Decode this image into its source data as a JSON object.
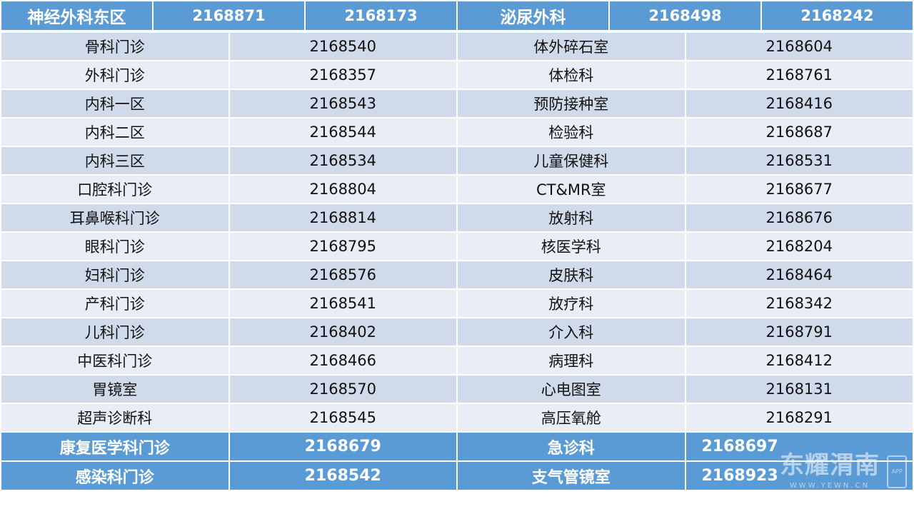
{
  "header": [
    "神经外科东区",
    "2168871",
    "2168173",
    "泌尿外科",
    "2168498",
    "2168242"
  ],
  "rows": [
    [
      "骨科门诊",
      "2168540",
      "体外碎石室",
      "2168604"
    ],
    [
      "外科门诊",
      "2168357",
      "体检科",
      "2168761"
    ],
    [
      "内科一区",
      "2168543",
      "预防接种室",
      "2168416"
    ],
    [
      "内科二区",
      "2168544",
      "检验科",
      "2168687"
    ],
    [
      "内科三区",
      "2168534",
      "儿童保健科",
      "2168531"
    ],
    [
      "口腔科门诊",
      "2168804",
      "CT&MR室",
      "2168677"
    ],
    [
      "耳鼻喉科门诊",
      "2168814",
      "放射科",
      "2168676"
    ],
    [
      "眼科门诊",
      "2168795",
      "核医学科",
      "2168204"
    ],
    [
      "妇科门诊",
      "2168576",
      "皮肤科",
      "2168464"
    ],
    [
      "产科门诊",
      "2168541",
      "放疗科",
      "2168342"
    ],
    [
      "儿科门诊",
      "2168402",
      "介入科",
      "2168791"
    ],
    [
      "中医科门诊",
      "2168466",
      "病理科",
      "2168412"
    ],
    [
      "胃镜室",
      "2168570",
      "心电图室",
      "2168131"
    ],
    [
      "超声诊断科",
      "2168545",
      "高压氧舱",
      "2168291"
    ]
  ],
  "highlight_rows": [
    [
      "康复医学科门诊",
      "2168679",
      "急诊科",
      "2168697"
    ],
    [
      "感染科门诊",
      "2168542",
      "支气管镜室",
      "2168923"
    ]
  ],
  "watermark": {
    "brand": "东耀渭南",
    "url": "WWW.YEWN.CN",
    "badge": "APP"
  },
  "colors": {
    "header": "#5b9bd5",
    "row_odd": "#cfdbeb",
    "row_even": "#e9eef6"
  }
}
